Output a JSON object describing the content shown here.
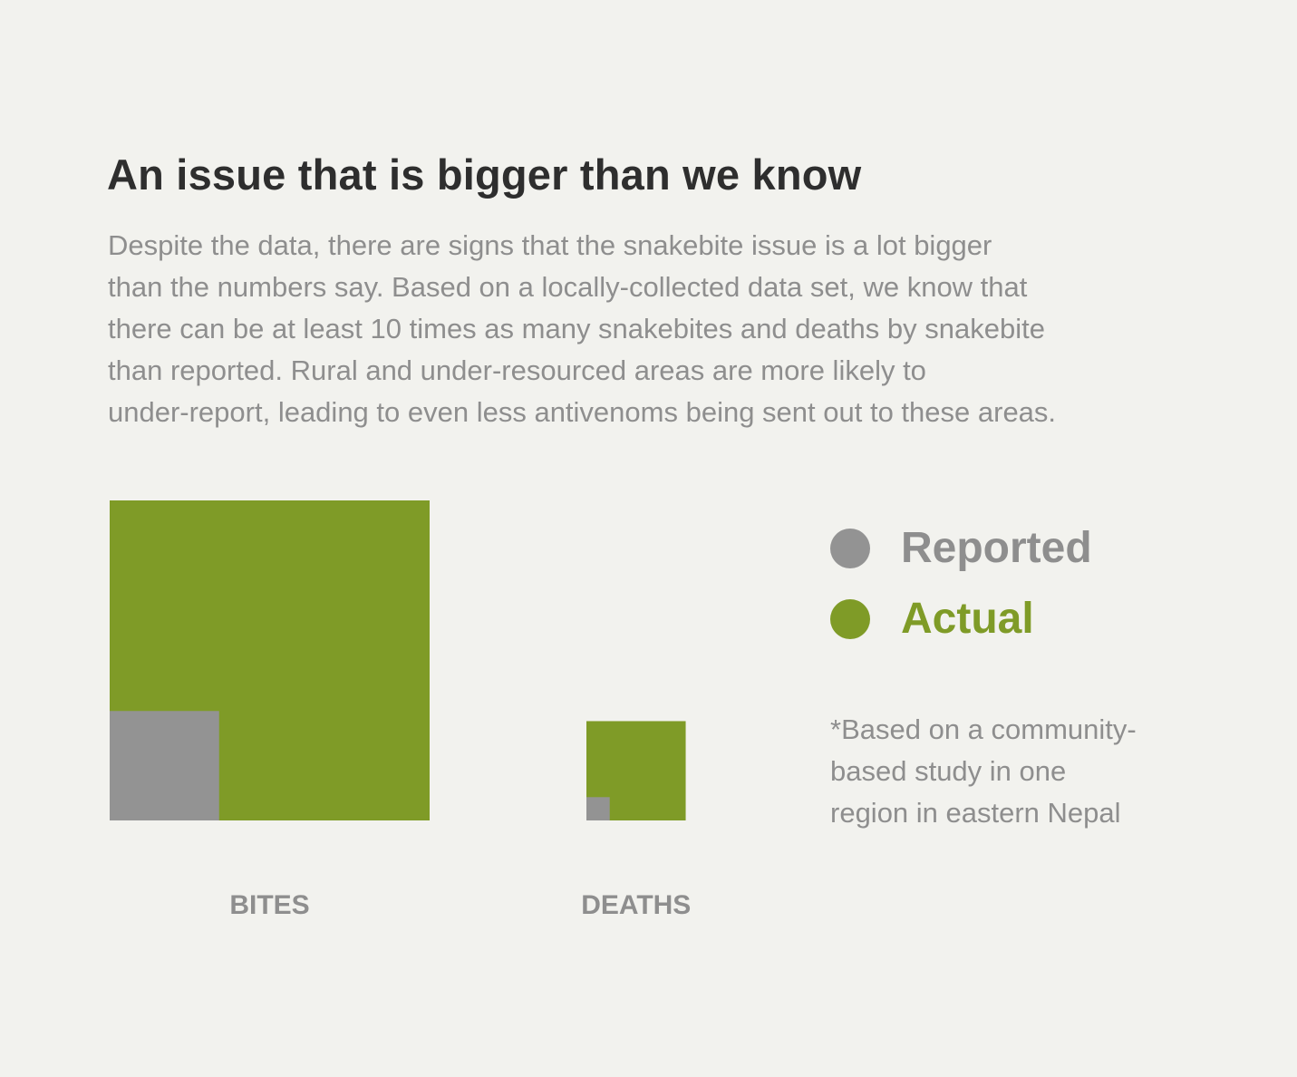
{
  "header": {
    "title": "An issue that is bigger than we know",
    "description_lines": [
      "Despite the data, there are signs that the snakebite issue is a lot bigger",
      "than the numbers say. Based on a locally-collected data set, we know that",
      "there can be at least 10 times as many snakebites and deaths by snakebite",
      "than reported. Rural and under-resourced areas are more likely to",
      "under-report, leading to even less antivenoms being sent out to these areas."
    ]
  },
  "legend": {
    "reported_label": "Reported",
    "actual_label": "Actual"
  },
  "footnote": {
    "lines": [
      "*Based on a community-",
      "based study in one",
      "region in eastern Nepal"
    ]
  },
  "colors": {
    "reported": "#939393",
    "actual": "#7f9b27"
  },
  "chart_data": {
    "type": "bar",
    "categories": [
      "BITES",
      "DEATHS"
    ],
    "series": [
      {
        "name": "Reported",
        "values": [
          0.117,
          0.0053
        ]
      },
      {
        "name": "Actual",
        "values": [
          1.0,
          0.0963
        ]
      }
    ],
    "title": "",
    "xlabel": "",
    "ylabel": ""
  }
}
